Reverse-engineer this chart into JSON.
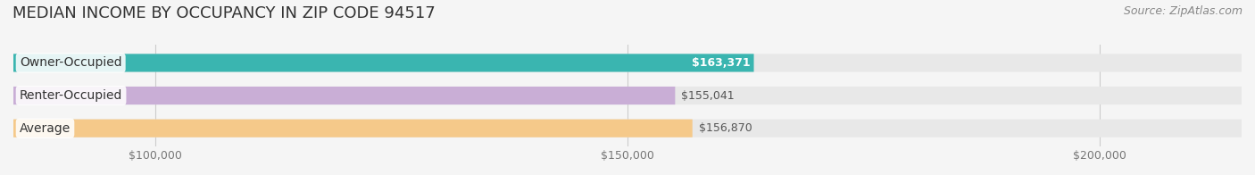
{
  "title": "MEDIAN INCOME BY OCCUPANCY IN ZIP CODE 94517",
  "source": "Source: ZipAtlas.com",
  "categories": [
    "Owner-Occupied",
    "Renter-Occupied",
    "Average"
  ],
  "values": [
    163371,
    155041,
    156870
  ],
  "bar_colors": [
    "#3ab5b0",
    "#c9aed6",
    "#f5c98a"
  ],
  "bar_labels": [
    "$163,371",
    "$155,041",
    "$156,870"
  ],
  "label_on_bar": [
    true,
    false,
    false
  ],
  "label_colors_on": [
    "#ffffff",
    "#555555",
    "#555555"
  ],
  "bg_color": "#f5f5f5",
  "bar_bg_color": "#e8e8e8",
  "xlim": [
    85000,
    215000
  ],
  "xticks": [
    100000,
    150000,
    200000
  ],
  "xtick_labels": [
    "$100,000",
    "$150,000",
    "$200,000"
  ],
  "title_fontsize": 13,
  "source_fontsize": 9,
  "label_fontsize": 9,
  "cat_fontsize": 10,
  "tick_fontsize": 9,
  "bar_height": 0.55,
  "title_color": "#333333",
  "tick_color": "#777777",
  "grid_color": "#cccccc"
}
